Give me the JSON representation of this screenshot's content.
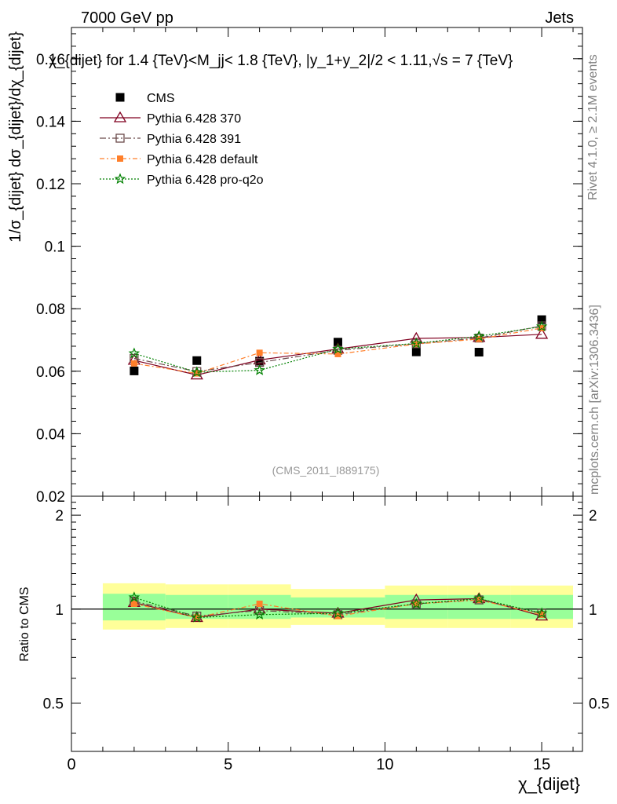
{
  "header": {
    "left": "7000 GeV pp",
    "right": "Jets",
    "plot_title": "χ_{dijet} for 1.4 {TeV}<M_jj< 1.8 {TeV}, |y_1+y_2|/2 < 1.11,√s = 7 {TeV}",
    "rivet_label": "Rivet 4.1.0, ≥ 2.1M events",
    "mcplots_label": "mcplots.cern.ch [arXiv:1306.3436]",
    "watermark": "(CMS_2011_I889175)"
  },
  "chart_data": [
    {
      "type": "scatter",
      "panel": "main",
      "ylabel": "1/σ_{dijet} dσ_{dijet}/dχ_{dijet}",
      "xlim": [
        0,
        16.3
      ],
      "ylim": [
        0.02,
        0.17
      ],
      "y_ticks": [
        "0.02",
        "0.04",
        "0.06",
        "0.08",
        "0.1",
        "0.12",
        "0.14",
        "0.16"
      ],
      "x": [
        2,
        4,
        6,
        8.5,
        11,
        13,
        15
      ],
      "series": [
        {
          "name": "CMS",
          "color": "#000000",
          "marker": "square",
          "values": [
            0.0601,
            0.0634,
            0.0632,
            0.0693,
            0.0662,
            0.0661,
            0.0765
          ]
        },
        {
          "name": "Pythia 6.428 370",
          "color": "#800020",
          "marker": "triangle",
          "values": [
            0.0635,
            0.0588,
            0.0636,
            0.0671,
            0.0705,
            0.0708,
            0.0718
          ]
        },
        {
          "name": "Pythia 6.428 391",
          "color": "#6b4a4a",
          "marker": "open-square",
          "values": [
            0.0641,
            0.0599,
            0.0628,
            0.0667,
            0.0688,
            0.0706,
            0.0745
          ]
        },
        {
          "name": "Pythia 6.428 default",
          "color": "#ff7f2a",
          "marker": "filled-square",
          "values": [
            0.0625,
            0.0593,
            0.0659,
            0.0655,
            0.0687,
            0.0703,
            0.0738
          ]
        },
        {
          "name": "Pythia 6.428 pro-q2o",
          "color": "#008000",
          "marker": "star",
          "values": [
            0.0657,
            0.0597,
            0.0603,
            0.0671,
            0.0689,
            0.0712,
            0.0743
          ]
        }
      ]
    },
    {
      "type": "line",
      "panel": "ratio",
      "ylabel": "Ratio to CMS",
      "xlabel": "χ_{dijet}",
      "xlim": [
        0,
        16.3
      ],
      "ylim": [
        0.35,
        2.3
      ],
      "y_ticks": [
        "0.5",
        "1",
        "2"
      ],
      "x_ticks": [
        "0",
        "5",
        "10",
        "15"
      ],
      "x": [
        2,
        4,
        6,
        8.5,
        11,
        13,
        15
      ],
      "bins": [
        [
          1,
          3
        ],
        [
          3,
          5
        ],
        [
          5,
          7
        ],
        [
          7,
          10
        ],
        [
          10,
          12
        ],
        [
          12,
          14
        ],
        [
          14,
          16
        ]
      ],
      "band_inner": [
        [
          0.92,
          1.12
        ],
        [
          0.93,
          1.11
        ],
        [
          0.93,
          1.11
        ],
        [
          0.94,
          1.09
        ],
        [
          0.93,
          1.11
        ],
        [
          0.93,
          1.11
        ],
        [
          0.93,
          1.11
        ]
      ],
      "band_outer": [
        [
          0.86,
          1.21
        ],
        [
          0.87,
          1.2
        ],
        [
          0.87,
          1.2
        ],
        [
          0.89,
          1.16
        ],
        [
          0.87,
          1.19
        ],
        [
          0.87,
          1.19
        ],
        [
          0.87,
          1.19
        ]
      ],
      "series": [
        {
          "name": "Pythia 6.428 370",
          "color": "#800020",
          "marker": "triangle",
          "values": [
            1.05,
            0.94,
            1.0,
            0.97,
            1.07,
            1.08,
            0.95
          ]
        },
        {
          "name": "Pythia 6.428 391",
          "color": "#6b4a4a",
          "marker": "open-square",
          "values": [
            1.06,
            0.95,
            0.99,
            0.96,
            1.04,
            1.07,
            0.97
          ]
        },
        {
          "name": "Pythia 6.428 default",
          "color": "#ff7f2a",
          "marker": "filled-square",
          "values": [
            1.04,
            0.94,
            1.04,
            0.95,
            1.04,
            1.07,
            0.96
          ]
        },
        {
          "name": "Pythia 6.428 pro-q2o",
          "color": "#008000",
          "marker": "star",
          "values": [
            1.09,
            0.94,
            0.96,
            0.97,
            1.04,
            1.08,
            0.97
          ]
        }
      ]
    }
  ]
}
